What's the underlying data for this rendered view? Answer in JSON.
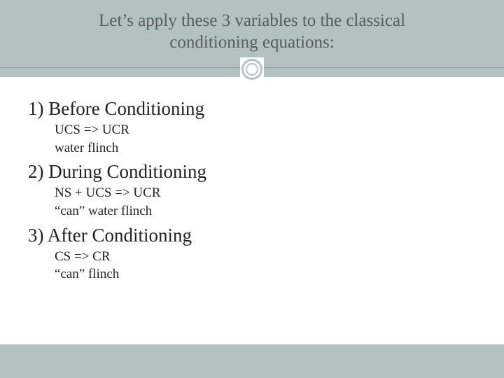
{
  "colors": {
    "band_bg": "#b2c2c2",
    "page_bg": "#ffffff",
    "title_text": "#5a5a5a",
    "body_text": "#222222",
    "rule": "#999999"
  },
  "typography": {
    "title_fontsize_pt": 19,
    "heading_fontsize_pt": 20,
    "equation_fontsize_pt": 14,
    "font_family": "Georgia, serif"
  },
  "title_line1": "Let’s apply these 3 variables to the classical",
  "title_line2": "conditioning equations:",
  "sections": [
    {
      "heading": "1) Before Conditioning",
      "eq1": "UCS  =>   UCR",
      "eq2": "water        flinch"
    },
    {
      "heading": "2) During Conditioning",
      "eq1": "NS  +  UCS  =>  UCR",
      "eq2": "“can”    water        flinch"
    },
    {
      "heading": "3) After Conditioning",
      "eq1": "CS  =>  CR",
      "eq2": "“can”    flinch"
    }
  ]
}
